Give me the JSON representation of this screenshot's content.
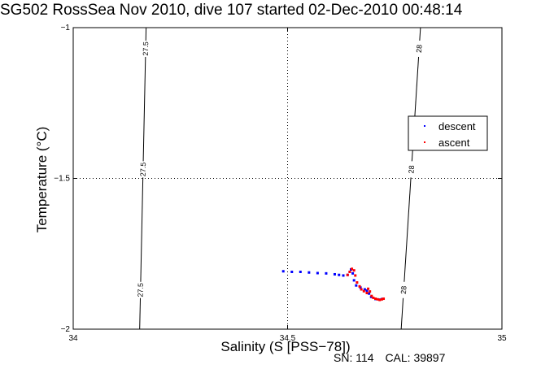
{
  "title": "SG502 RossSea Nov 2010, dive 107 started 02-Dec-2010 00:48:14",
  "footer": {
    "sn": "SN: 114",
    "cal": "CAL: 39897"
  },
  "chart_data": {
    "type": "scatter",
    "xlabel": "Salinity (S [PSS−78])",
    "ylabel": "Temperature (°C)",
    "xlim": [
      34,
      35
    ],
    "ylim": [
      -2,
      -1
    ],
    "xticks": [
      34,
      34.5,
      35
    ],
    "yticks": [
      -1,
      -1.5,
      -2
    ],
    "xtick_labels": [
      "34",
      "34.5",
      "35"
    ],
    "ytick_labels": [
      "−1",
      "−1.5",
      "−2"
    ],
    "grid": "dotted at 34.5 and -1.5",
    "legend": {
      "placement": "right",
      "entries": [
        "descent",
        "ascent"
      ]
    },
    "density_contours": [
      {
        "label": "27.5",
        "points": [
          [
            34.17,
            -1.0
          ],
          [
            34.155,
            -2.0
          ]
        ]
      },
      {
        "label": "28",
        "points": [
          [
            34.81,
            -1.0
          ],
          [
            34.765,
            -2.0
          ]
        ]
      }
    ],
    "series": [
      {
        "name": "descent",
        "color": "#0000ff",
        "points": [
          [
            34.49,
            -1.808
          ],
          [
            34.51,
            -1.81
          ],
          [
            34.53,
            -1.81
          ],
          [
            34.55,
            -1.812
          ],
          [
            34.57,
            -1.814
          ],
          [
            34.59,
            -1.815
          ],
          [
            34.61,
            -1.818
          ],
          [
            34.62,
            -1.82
          ],
          [
            34.63,
            -1.822
          ],
          [
            34.64,
            -1.82
          ],
          [
            34.645,
            -1.81
          ],
          [
            34.648,
            -1.802
          ],
          [
            34.652,
            -1.815
          ],
          [
            34.655,
            -1.838
          ],
          [
            34.66,
            -1.855
          ],
          [
            34.67,
            -1.862
          ],
          [
            34.68,
            -1.868
          ],
          [
            34.685,
            -1.872
          ],
          [
            34.69,
            -1.882
          ],
          [
            34.695,
            -1.893
          ],
          [
            34.705,
            -1.9
          ],
          [
            34.715,
            -1.902
          ],
          [
            34.72,
            -1.9
          ]
        ]
      },
      {
        "name": "ascent",
        "color": "#ff0000",
        "points": [
          [
            34.64,
            -1.82
          ],
          [
            34.645,
            -1.81
          ],
          [
            34.65,
            -1.8
          ],
          [
            34.655,
            -1.805
          ],
          [
            34.658,
            -1.822
          ],
          [
            34.662,
            -1.845
          ],
          [
            34.668,
            -1.858
          ],
          [
            34.672,
            -1.868
          ],
          [
            34.678,
            -1.874
          ],
          [
            34.685,
            -1.88
          ],
          [
            34.688,
            -1.866
          ],
          [
            34.692,
            -1.875
          ],
          [
            34.696,
            -1.89
          ],
          [
            34.7,
            -1.896
          ],
          [
            34.705,
            -1.899
          ],
          [
            34.71,
            -1.901
          ],
          [
            34.715,
            -1.903
          ],
          [
            34.72,
            -1.901
          ],
          [
            34.724,
            -1.899
          ]
        ]
      }
    ]
  }
}
